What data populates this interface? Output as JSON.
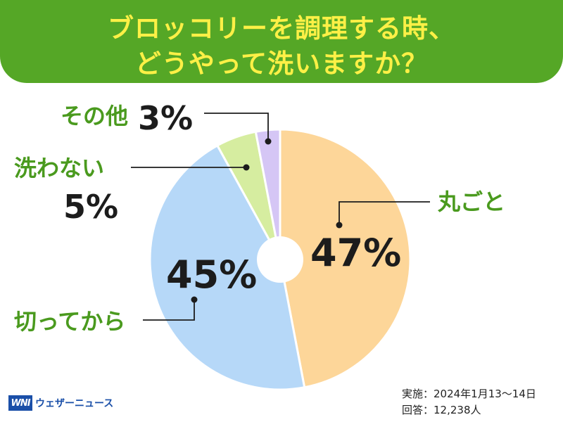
{
  "header": {
    "title_line1": "ブロッコリーを調理する時、",
    "title_line2": "どうやって洗いますか？"
  },
  "chart_data": {
    "type": "pie",
    "title": "ブロッコリーを調理する時、どうやって洗いますか？",
    "series": [
      {
        "label": "丸ごと",
        "value": 47,
        "value_label": "47%",
        "color": "#fdd699"
      },
      {
        "label": "切ってから",
        "value": 45,
        "value_label": "45%",
        "color": "#b6d8f8"
      },
      {
        "label": "洗わない",
        "value": 5,
        "value_label": "5%",
        "color": "#d6eda0"
      },
      {
        "label": "その他",
        "value": 3,
        "value_label": "3%",
        "color": "#d5c6f5"
      }
    ]
  },
  "footer": {
    "logo_mark": "WNI",
    "logo_text": "ウェザーニュース",
    "survey_period": "実施：2024年1月13～14日",
    "respondents": "回答：12,238人"
  }
}
